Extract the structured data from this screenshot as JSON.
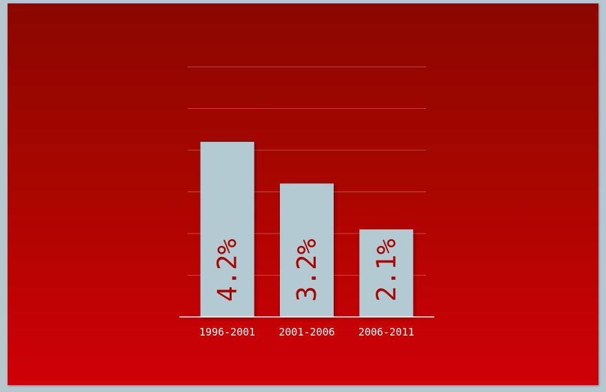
{
  "chart_data": {
    "type": "bar",
    "categories": [
      "1996-2001",
      "2001-2006",
      "2006-2011"
    ],
    "values": [
      4.2,
      3.2,
      2.1
    ],
    "data_labels": [
      "4.2%",
      "3.2%",
      "2.1%"
    ],
    "ylim": [
      0,
      6
    ],
    "grid": true,
    "colors": {
      "bar": "#b4cad3",
      "label": "#a70600",
      "background_top": "#8c0600",
      "background_bottom": "#cf0006"
    }
  }
}
